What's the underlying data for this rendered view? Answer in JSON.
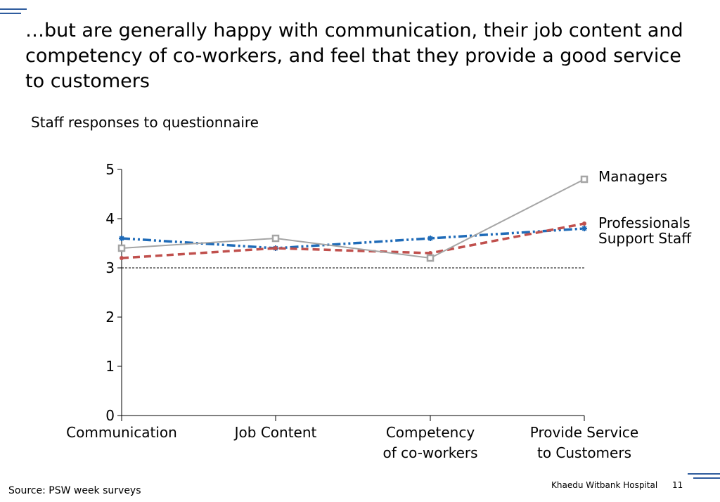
{
  "slide": {
    "title": "…but are generally happy with communication, their job content and competency of co-workers, and feel that they provide a good service to customers",
    "subtitle": "Staff responses to questionnaire",
    "source": "Source: PSW week surveys",
    "footer_org": "Khaedu Witbank Hospital",
    "page_number": "11"
  },
  "colors": {
    "decor": "#2f5c9e",
    "managers": "#a5a5a5",
    "professionals": "#c0504d",
    "support_staff": "#1f6bb8"
  },
  "chart_data": {
    "type": "line",
    "categories": [
      [
        "Communication"
      ],
      [
        "Job Content"
      ],
      [
        "Competency",
        "of co-workers"
      ],
      [
        "Provide Service",
        "to Customers"
      ]
    ],
    "series": [
      {
        "name": "Managers",
        "values": [
          3.4,
          3.6,
          3.2,
          4.8
        ],
        "color": "#a5a5a5",
        "line_style": "solid",
        "marker": "square"
      },
      {
        "name": "Professionals",
        "values": [
          3.2,
          3.4,
          3.3,
          3.9
        ],
        "color": "#c0504d",
        "line_style": "dashed",
        "marker": "circle"
      },
      {
        "name": "Support Staff",
        "values": [
          3.6,
          3.4,
          3.6,
          3.8
        ],
        "color": "#1f6bb8",
        "line_style": "dash-dot-dot",
        "marker": "star"
      }
    ],
    "ylim": [
      0,
      5
    ],
    "yticks": [
      0,
      1,
      2,
      3,
      4,
      5
    ],
    "reference_line": 3,
    "legend": "right, labels at line ends",
    "grid": false
  }
}
